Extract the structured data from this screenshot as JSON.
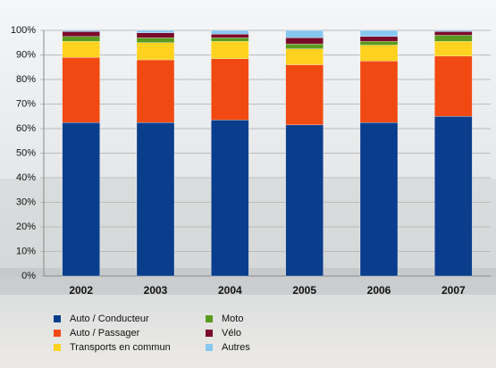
{
  "chart_data": {
    "type": "stacked-bar",
    "categories": [
      "2002",
      "2003",
      "2004",
      "2005",
      "2006",
      "2007"
    ],
    "series": [
      {
        "name": "Auto / Conducteur",
        "color": "#0a3e8c",
        "values": [
          62.5,
          62.5,
          63.5,
          61.5,
          62.5,
          65
        ]
      },
      {
        "name": "Auto / Passager",
        "color": "#f04a12",
        "values": [
          26.5,
          25.5,
          25,
          24.5,
          25,
          24.5
        ]
      },
      {
        "name": "Transports en commun",
        "color": "#ffd21f",
        "values": [
          6.5,
          7,
          7,
          6.5,
          6.5,
          6
        ]
      },
      {
        "name": "Moto",
        "color": "#5a9a1e",
        "values": [
          2,
          2,
          1.5,
          2,
          1.5,
          2.5
        ]
      },
      {
        "name": "Vélo",
        "color": "#7a0a2a",
        "values": [
          2,
          2,
          1.5,
          2.5,
          2,
          1.5
        ]
      },
      {
        "name": "Autres",
        "color": "#88c8f0",
        "values": [
          0.5,
          1,
          1.5,
          3,
          2.5,
          0.5
        ]
      }
    ],
    "ylim": [
      0,
      100
    ],
    "yticks": [
      {
        "value": 0,
        "label": "0%"
      },
      {
        "value": 10,
        "label": "10%"
      },
      {
        "value": 20,
        "label": "20%"
      },
      {
        "value": 30,
        "label": "30%"
      },
      {
        "value": 40,
        "label": "40%"
      },
      {
        "value": 50,
        "label": "50%"
      },
      {
        "value": 60,
        "label": "60%"
      },
      {
        "value": 70,
        "label": "70%"
      },
      {
        "value": 80,
        "label": "80%"
      },
      {
        "value": 90,
        "label": "90%"
      },
      {
        "value": 100,
        "label": "100%"
      }
    ],
    "grid": true
  }
}
